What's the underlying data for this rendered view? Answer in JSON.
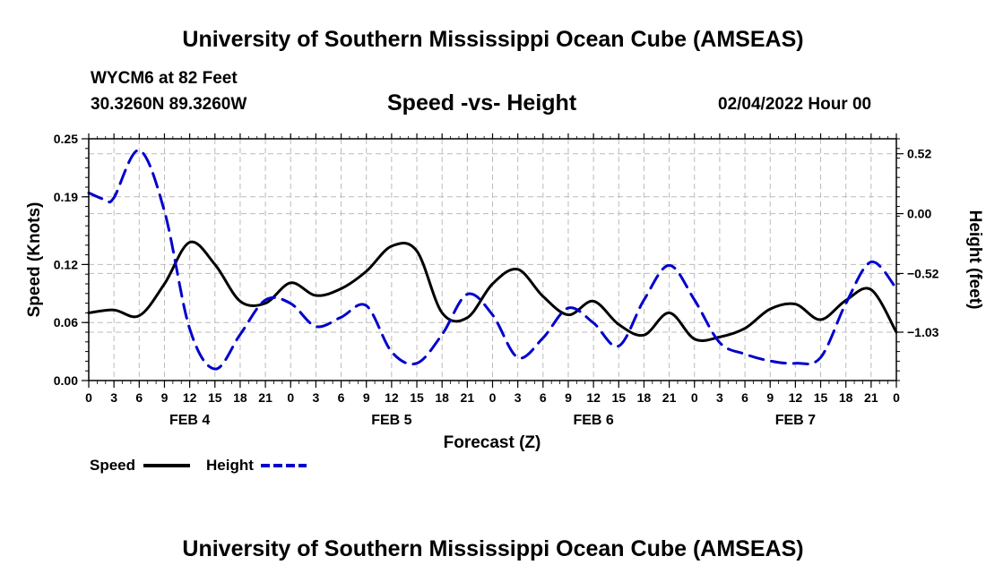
{
  "header": {
    "title": "University of Southern Mississippi Ocean Cube (AMSEAS)",
    "station": "WYCM6 at 82 Feet",
    "coordinates": "30.3260N  89.3260W",
    "subtitle": "Speed -vs- Height",
    "date_hour": "02/04/2022 Hour 00"
  },
  "footer": {
    "title": "University of Southern Mississippi Ocean Cube (AMSEAS)"
  },
  "chart_data": {
    "type": "line",
    "xlabel": "Forecast (Z)",
    "ylabel": "Speed (Knots)",
    "y2label": "Height (feet)",
    "x_range_hours": [
      0,
      96
    ],
    "x_tick_step_hours": 3,
    "x_tick_labels": [
      "0",
      "3",
      "6",
      "9",
      "12",
      "15",
      "18",
      "21",
      "0",
      "3",
      "6",
      "9",
      "12",
      "15",
      "18",
      "21",
      "0",
      "3",
      "6",
      "9",
      "12",
      "15",
      "18",
      "21",
      "0",
      "3",
      "6",
      "9",
      "12",
      "15",
      "18",
      "21",
      "0"
    ],
    "day_labels": [
      {
        "label": "FEB 4",
        "hour": 12
      },
      {
        "label": "FEB 5",
        "hour": 36
      },
      {
        "label": "FEB 6",
        "hour": 60
      },
      {
        "label": "FEB 7",
        "hour": 84
      }
    ],
    "ylim": [
      0,
      0.25
    ],
    "y_ticks": [
      0.0,
      0.06,
      0.12,
      0.19,
      0.25
    ],
    "y_tick_labels": [
      "0.00",
      "0.06",
      "0.12",
      "0.19",
      "0.25"
    ],
    "y2lim": [
      -1.45,
      0.65
    ],
    "y2_ticks": [
      0.52,
      0.0,
      -0.52,
      -1.03
    ],
    "y2_tick_labels": [
      "0.52",
      "0.00",
      "−0.52",
      "−1.03"
    ],
    "grid": true,
    "legend": [
      {
        "label": "Speed",
        "color": "#000000",
        "style": "solid"
      },
      {
        "label": "Height",
        "color": "#0000cc",
        "style": "dashed"
      }
    ],
    "series": [
      {
        "name": "Speed",
        "axis": "left",
        "color": "#000000",
        "dash": "solid",
        "x": [
          0,
          3,
          6,
          9,
          12,
          15,
          18,
          21,
          24,
          27,
          30,
          33,
          36,
          39,
          42,
          45,
          48,
          51,
          54,
          57,
          60,
          63,
          66,
          69,
          72,
          75,
          78,
          81,
          84,
          87,
          90,
          93,
          96
        ],
        "values": [
          0.07,
          0.073,
          0.067,
          0.1,
          0.143,
          0.12,
          0.082,
          0.08,
          0.101,
          0.088,
          0.095,
          0.113,
          0.139,
          0.134,
          0.07,
          0.065,
          0.1,
          0.115,
          0.087,
          0.068,
          0.082,
          0.058,
          0.047,
          0.07,
          0.043,
          0.045,
          0.054,
          0.074,
          0.079,
          0.063,
          0.083,
          0.094,
          0.05
        ]
      },
      {
        "name": "Height",
        "axis": "right",
        "color": "#0000cc",
        "dash": "dashed",
        "x": [
          0,
          2,
          3,
          6,
          9,
          12,
          15,
          18,
          21,
          24,
          27,
          30,
          33,
          36,
          39,
          42,
          45,
          48,
          51,
          54,
          57,
          60,
          63,
          66,
          69,
          72,
          75,
          78,
          81,
          84,
          87,
          90,
          93,
          96
        ],
        "values": [
          0.18,
          0.12,
          0.14,
          0.55,
          0.02,
          -1.0,
          -1.35,
          -1.05,
          -0.75,
          -0.78,
          -0.98,
          -0.9,
          -0.8,
          -1.2,
          -1.3,
          -1.05,
          -0.7,
          -0.88,
          -1.25,
          -1.08,
          -0.82,
          -0.95,
          -1.15,
          -0.75,
          -0.45,
          -0.75,
          -1.12,
          -1.22,
          -1.28,
          -1.3,
          -1.25,
          -0.78,
          -0.42,
          -0.65
        ]
      }
    ]
  }
}
